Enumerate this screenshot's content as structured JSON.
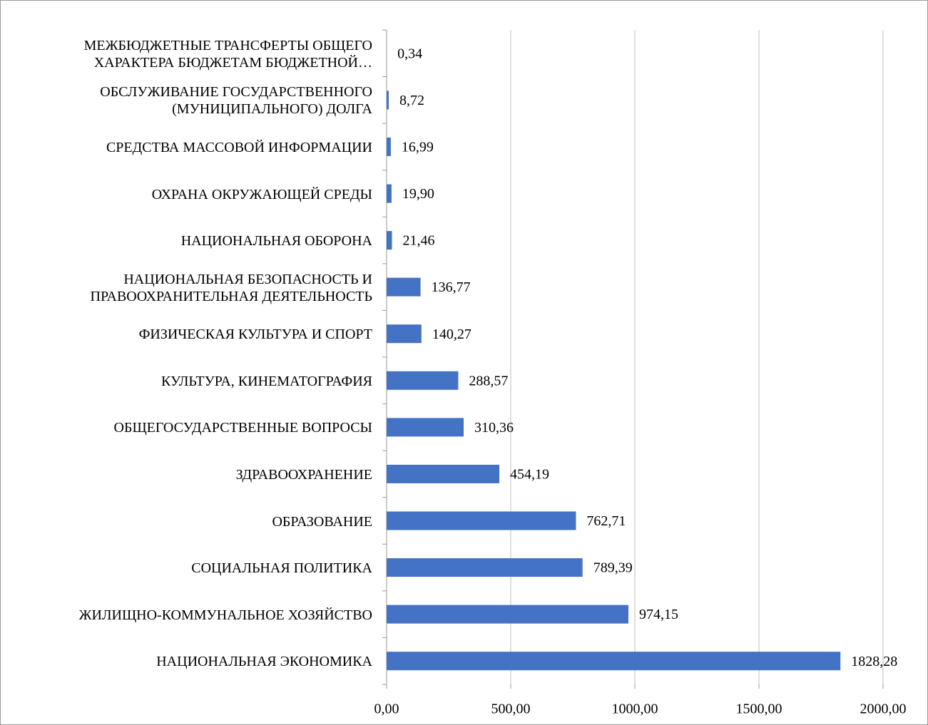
{
  "chart_data": {
    "type": "barh",
    "categories": [
      "МЕЖБЮДЖЕТНЫЕ ТРАНСФЕРТЫ ОБЩЕГО\nХАРАКТЕРА БЮДЖЕТАМ БЮДЖЕТНОЙ…",
      "ОБСЛУЖИВАНИЕ ГОСУДАРСТВЕННОГО\n(МУНИЦИПАЛЬНОГО) ДОЛГА",
      "СРЕДСТВА МАССОВОЙ ИНФОРМАЦИИ",
      "ОХРАНА ОКРУЖАЮЩЕЙ СРЕДЫ",
      "НАЦИОНАЛЬНАЯ ОБОРОНА",
      "НАЦИОНАЛЬНАЯ БЕЗОПАСНОСТЬ И\nПРАВООХРАНИТЕЛЬНАЯ ДЕЯТЕЛЬНОСТЬ",
      "ФИЗИЧЕСКАЯ КУЛЬТУРА И СПОРТ",
      "КУЛЬТУРА, КИНЕМАТОГРАФИЯ",
      "ОБЩЕГОСУДАРСТВЕННЫЕ ВОПРОСЫ",
      "ЗДРАВООХРАНЕНИЕ",
      "ОБРАЗОВАНИЕ",
      "СОЦИАЛЬНАЯ ПОЛИТИКА",
      "ЖИЛИЩНО-КОММУНАЛЬНОЕ ХОЗЯЙСТВО",
      "НАЦИОНАЛЬНАЯ ЭКОНОМИКА"
    ],
    "values": [
      0.34,
      8.72,
      16.99,
      19.9,
      21.46,
      136.77,
      140.27,
      288.57,
      310.36,
      454.19,
      762.71,
      789.39,
      974.15,
      1828.28
    ],
    "value_labels": [
      "0,34",
      "8,72",
      "16,99",
      "19,90",
      "21,46",
      "136,77",
      "140,27",
      "288,57",
      "310,36",
      "454,19",
      "762,71",
      "789,39",
      "974,15",
      "1828,28"
    ],
    "color": "#4472c4",
    "xlim": [
      0,
      2000
    ],
    "xticks": [
      {
        "value": 0,
        "label": "0,00"
      },
      {
        "value": 500,
        "label": "500,00"
      },
      {
        "value": 1000,
        "label": "1000,00"
      },
      {
        "value": 1500,
        "label": "1500,00"
      },
      {
        "value": 2000,
        "label": "2000,00"
      }
    ],
    "grid": true
  }
}
